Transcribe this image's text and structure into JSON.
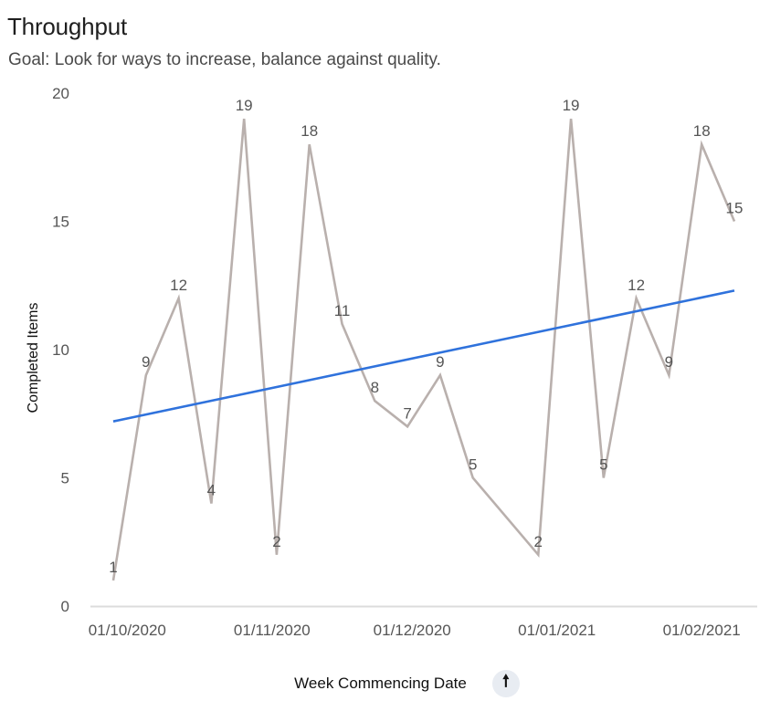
{
  "header": {
    "title": "Throughput",
    "subtitle": "Goal: Look for ways to increase, balance against quality."
  },
  "controls": {
    "sort_icon": "arrow-up-icon",
    "sort_glyph": "🠕"
  },
  "chart_data": {
    "type": "line",
    "title": "Throughput",
    "subtitle": "Goal: Look for ways to increase, balance against quality.",
    "xlabel": "Week Commencing Date",
    "ylabel": "Completed Items",
    "ylim": [
      0,
      20
    ],
    "yticks": [
      0,
      5,
      10,
      15,
      20
    ],
    "xlim": [
      "2020-09-27",
      "2021-02-22"
    ],
    "xticks": [
      {
        "date": "2020-10-01",
        "label": "01/10/2020"
      },
      {
        "date": "2020-11-01",
        "label": "01/11/2020"
      },
      {
        "date": "2020-12-01",
        "label": "01/12/2020"
      },
      {
        "date": "2021-01-01",
        "label": "01/01/2021"
      },
      {
        "date": "2021-02-01",
        "label": "01/02/2021"
      }
    ],
    "grid": false,
    "series": [
      {
        "name": "",
        "color": "#b9b0ad",
        "data_labels": true,
        "points": [
          {
            "x": "2020-09-28",
            "y": 1
          },
          {
            "x": "2020-10-05",
            "y": 9
          },
          {
            "x": "2020-10-12",
            "y": 12
          },
          {
            "x": "2020-10-19",
            "y": 4
          },
          {
            "x": "2020-10-26",
            "y": 19
          },
          {
            "x": "2020-11-02",
            "y": 2
          },
          {
            "x": "2020-11-09",
            "y": 18
          },
          {
            "x": "2020-11-16",
            "y": 11
          },
          {
            "x": "2020-11-23",
            "y": 8
          },
          {
            "x": "2020-11-30",
            "y": 7
          },
          {
            "x": "2020-12-07",
            "y": 9
          },
          {
            "x": "2020-12-14",
            "y": 5
          },
          {
            "x": "2020-12-28",
            "y": 2
          },
          {
            "x": "2021-01-04",
            "y": 19
          },
          {
            "x": "2021-01-11",
            "y": 5
          },
          {
            "x": "2021-01-18",
            "y": 12
          },
          {
            "x": "2021-01-25",
            "y": 9
          },
          {
            "x": "2021-02-01",
            "y": 18
          },
          {
            "x": "2021-02-08",
            "y": 15
          }
        ]
      },
      {
        "name": "",
        "color": "#2f72dc",
        "kind": "trend",
        "points": [
          {
            "x": "2020-09-28",
            "y": 7.2
          },
          {
            "x": "2021-02-08",
            "y": 12.3
          }
        ]
      }
    ]
  }
}
